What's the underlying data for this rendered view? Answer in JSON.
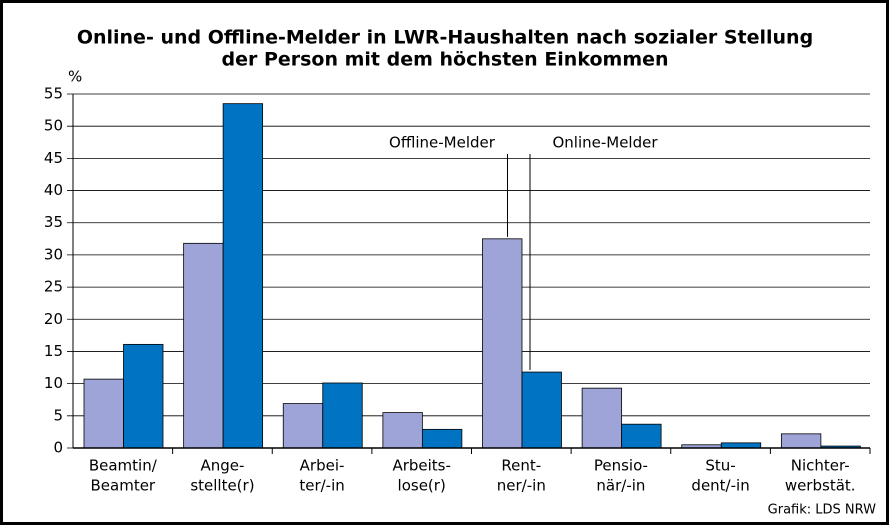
{
  "chart_data": {
    "type": "bar",
    "title": [
      "Online- und Offline-Melder in LWR-Haushalten nach sozialer Stellung",
      "der Person mit dem höchsten Einkommen"
    ],
    "y_label": "%",
    "categories": [
      [
        "Beamtin/",
        "Beamter"
      ],
      [
        "Ange-",
        "stellte(r)"
      ],
      [
        "Arbei-",
        "ter/-in"
      ],
      [
        "Arbeits-",
        "lose(r)"
      ],
      [
        "Rent-",
        "ner/-in"
      ],
      [
        "Pensio-",
        "när/-in"
      ],
      [
        "Stu-",
        "dent/-in"
      ],
      [
        "Nichter-",
        "werbstät."
      ]
    ],
    "series": [
      {
        "name": "Offline-Melder",
        "color": "#9fa4d8",
        "values": [
          10.7,
          31.8,
          6.9,
          5.5,
          32.5,
          9.3,
          0.5,
          2.2
        ]
      },
      {
        "name": "Online-Melder",
        "color": "#0073c2",
        "values": [
          16.1,
          53.5,
          10.1,
          2.9,
          11.8,
          3.7,
          0.8,
          0.3
        ]
      }
    ],
    "ylim": [
      0,
      55
    ],
    "yticks": [
      0,
      5,
      10,
      15,
      20,
      25,
      30,
      35,
      40,
      45,
      50,
      55
    ],
    "grid": true,
    "source": "Grafik: LDS NRW"
  }
}
